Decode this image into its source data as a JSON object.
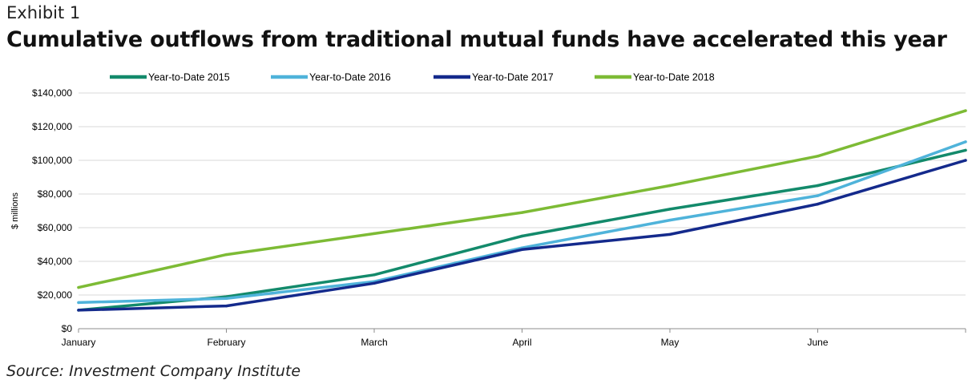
{
  "header": {
    "exhibit": "Exhibit 1",
    "title": "Cumulative outflows from traditional mutual funds have accelerated this year"
  },
  "footer": {
    "source": "Source: Investment Company Institute"
  },
  "chart_data": {
    "type": "line",
    "ylabel": "$ millions",
    "ylim": [
      0,
      140000
    ],
    "y_ticks": [
      0,
      20000,
      40000,
      60000,
      80000,
      100000,
      120000,
      140000
    ],
    "y_tick_labels": [
      "$0",
      "$20,000",
      "$40,000",
      "$60,000",
      "$80,000",
      "$100,000",
      "$120,000",
      "$140,000"
    ],
    "categories": [
      "January",
      "February",
      "March",
      "April",
      "May",
      "June",
      ""
    ],
    "legend_position": "top",
    "grid": true,
    "series": [
      {
        "name": "Year-to-Date 2015",
        "color": "#138a6b",
        "values": [
          11000,
          19000,
          32000,
          55000,
          71000,
          85000,
          106000
        ]
      },
      {
        "name": "Year-to-Date 2016",
        "color": "#4fb3da",
        "values": [
          15500,
          18000,
          28000,
          48000,
          64500,
          79000,
          111000
        ]
      },
      {
        "name": "Year-to-Date 2017",
        "color": "#142a8c",
        "values": [
          11000,
          13500,
          27000,
          47000,
          56000,
          74000,
          100000
        ]
      },
      {
        "name": "Year-to-Date 2018",
        "color": "#7dbb35",
        "values": [
          24500,
          44000,
          56500,
          69000,
          85000,
          102500,
          129500
        ]
      }
    ]
  }
}
